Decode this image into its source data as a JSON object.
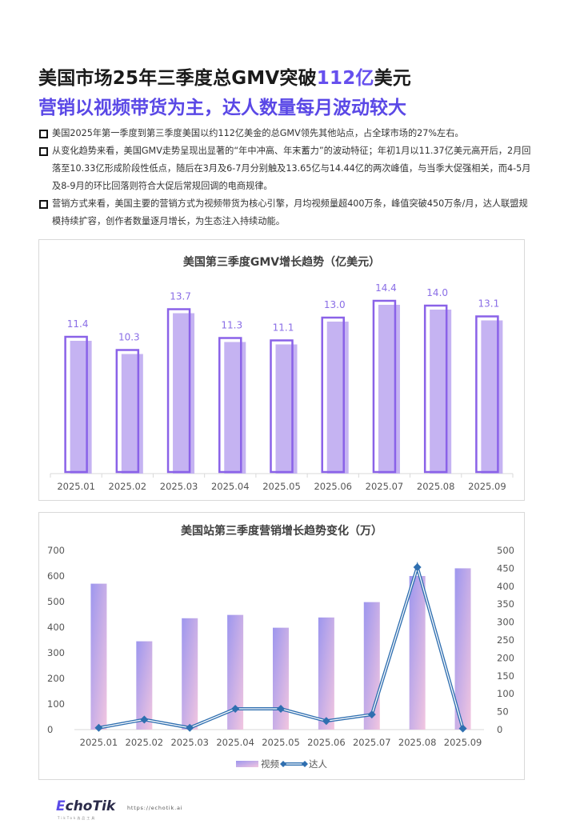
{
  "header": {
    "title_prefix": "美国市场25年三季度总GMV突破",
    "title_accent": "112亿",
    "title_suffix": "美元",
    "subtitle": "营销以视频带货为主，达人数量每月波动较大"
  },
  "bullets": [
    {
      "text": "美国2025年第一季度到第三季度美国以约112亿美金的总GMV领先其他站点，占全球市场的27%左右。"
    },
    {
      "text": "从变化趋势来看，美国GMV走势呈现出显著的“年中冲高、年末蓄力”的波动特征；年初1月以11.37亿美元高开后，2月回落至10.33亿形成阶段性低点，随后在3月及6-7月分别触及13.65亿与14.44亿的两次峰值，与当季大促强相关，而4-5月及8-9月的环比回落则符合大促后常规回调的电商规律。"
    },
    {
      "text": "营销方式来看，美国主要的营销方式为视频带货为核心引擎，月均视频量超400万条，峰值突破450万条/月，达人联盟规模持续扩容，创作者数量逐月增长，为生态注入持续动能。"
    }
  ],
  "chart_data": [
    {
      "type": "bar",
      "title": "美国第三季度GMV增长趋势（亿美元）",
      "categories": [
        "2025.01",
        "2025.02",
        "2025.03",
        "2025.04",
        "2025.05",
        "2025.06",
        "2025.07",
        "2025.08",
        "2025.09"
      ],
      "values": [
        11.4,
        10.3,
        13.7,
        11.3,
        11.1,
        13.0,
        14.4,
        14.0,
        13.1
      ],
      "data_labels": [
        "11.4",
        "10.3",
        "13.7",
        "11.3",
        "11.1",
        "13.0",
        "14.4",
        "14.0",
        "13.1"
      ],
      "xlabel": "",
      "ylabel": "",
      "ylim": [
        0,
        16
      ],
      "grid": false,
      "legend": null,
      "colors": {
        "bar_fill": "#c5b3f2",
        "bar_outline": "#8a62e8",
        "label": "#8a6ee6"
      }
    },
    {
      "type": "bar+line",
      "title": "美国站第三季度营销增长趋势变化（万）",
      "categories": [
        "2025.01",
        "2025.02",
        "2025.03",
        "2025.04",
        "2025.05",
        "2025.06",
        "2025.07",
        "2025.08",
        "2025.09"
      ],
      "series": [
        {
          "name": "视频",
          "type": "bar",
          "axis": "left",
          "values": [
            570,
            345,
            435,
            448,
            398,
            438,
            498,
            600,
            630
          ]
        },
        {
          "name": "达人",
          "type": "line",
          "axis": "right",
          "values": [
            5,
            28,
            5,
            58,
            58,
            24,
            42,
            453,
            3
          ]
        }
      ],
      "left_axis": {
        "ticks": [
          "0",
          "100",
          "200",
          "300",
          "400",
          "500",
          "600",
          "700"
        ],
        "ylim": [
          0,
          700
        ]
      },
      "right_axis": {
        "ticks": [
          "0",
          "50",
          "100",
          "150",
          "200",
          "250",
          "300",
          "350",
          "400",
          "450",
          "500"
        ],
        "ylim": [
          0,
          500
        ]
      },
      "legend": {
        "position": "bottom",
        "items": [
          "视频",
          "达人"
        ]
      },
      "grid": false,
      "colors": {
        "bar_gradient_start": "#9d96ee",
        "bar_gradient_end": "#f2c6e0",
        "line": "#2f6fb0"
      }
    }
  ],
  "footer": {
    "logo_prefix": "E",
    "logo_rest": "choTik",
    "logo_sub": "TikTok选品工具",
    "url": "https://echotik.ai"
  }
}
